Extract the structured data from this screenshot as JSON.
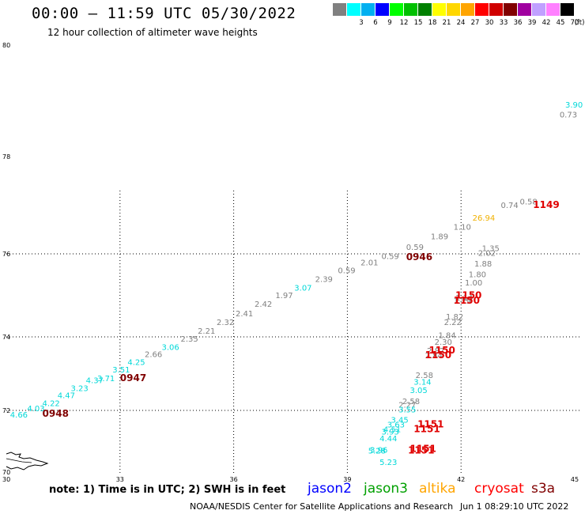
{
  "header": {
    "title": "00:00 – 11:59 UTC 05/30/2022",
    "subtitle": "12 hour collection of altimeter wave heights"
  },
  "legend": {
    "unit": "(ft)",
    "swatches": [
      {
        "color": "#808080",
        "label": ""
      },
      {
        "color": "#00ffff",
        "label": "3"
      },
      {
        "color": "#00b0f0",
        "label": "6"
      },
      {
        "color": "#0000ff",
        "label": "9"
      },
      {
        "color": "#00ff00",
        "label": "12"
      },
      {
        "color": "#00c000",
        "label": "15"
      },
      {
        "color": "#008000",
        "label": "18"
      },
      {
        "color": "#ffff00",
        "label": "21"
      },
      {
        "color": "#ffd700",
        "label": "24"
      },
      {
        "color": "#ffa500",
        "label": "27"
      },
      {
        "color": "#ff0000",
        "label": "30"
      },
      {
        "color": "#d00000",
        "label": "33"
      },
      {
        "color": "#800000",
        "label": "36"
      },
      {
        "color": "#a000a0",
        "label": "39"
      },
      {
        "color": "#c0a0ff",
        "label": "42"
      },
      {
        "color": "#ff80ff",
        "label": "45"
      },
      {
        "color": "#000000",
        "label": "70"
      }
    ]
  },
  "map": {
    "lon_ticks": [
      "30",
      "33",
      "36",
      "39",
      "42",
      "45"
    ],
    "lat_ticks": [
      "70",
      "72",
      "74",
      "76",
      "78",
      "80"
    ],
    "grid_lons": [
      33,
      36,
      39,
      42
    ],
    "grid_lats": [
      72,
      74,
      76
    ]
  },
  "observations": [
    {
      "text": "4.66",
      "lon": 30.1,
      "lat": 71.77,
      "color": "#00d8d8"
    },
    {
      "text": "4.03",
      "lon": 30.55,
      "lat": 71.97,
      "color": "#00d8d8"
    },
    {
      "text": "4.22",
      "lon": 30.95,
      "lat": 72.12,
      "color": "#00d8d8"
    },
    {
      "text": "4.47",
      "lon": 31.35,
      "lat": 72.33,
      "color": "#00d8d8"
    },
    {
      "text": "3.23",
      "lon": 31.7,
      "lat": 72.53,
      "color": "#00d8d8"
    },
    {
      "text": "4.37",
      "lon": 32.1,
      "lat": 72.74,
      "color": "#00d8d8"
    },
    {
      "text": "3.71",
      "lon": 32.4,
      "lat": 72.8,
      "color": "#00d8d8"
    },
    {
      "text": "3.51",
      "lon": 32.8,
      "lat": 73.03,
      "color": "#00d8d8"
    },
    {
      "text": "4.25",
      "lon": 33.2,
      "lat": 73.24,
      "color": "#00d8d8"
    },
    {
      "text": "2.66",
      "lon": 33.65,
      "lat": 73.45,
      "color": "#808080"
    },
    {
      "text": "3.06",
      "lon": 34.1,
      "lat": 73.65,
      "color": "#00d8d8"
    },
    {
      "text": "2.35",
      "lon": 34.6,
      "lat": 73.87,
      "color": "#808080"
    },
    {
      "text": "2.21",
      "lon": 35.05,
      "lat": 74.08,
      "color": "#808080"
    },
    {
      "text": "2.32",
      "lon": 35.55,
      "lat": 74.29,
      "color": "#808080"
    },
    {
      "text": "2.41",
      "lon": 36.05,
      "lat": 74.5,
      "color": "#808080"
    },
    {
      "text": "2.42",
      "lon": 36.55,
      "lat": 74.72,
      "color": "#808080"
    },
    {
      "text": "1.97",
      "lon": 37.1,
      "lat": 74.93,
      "color": "#808080"
    },
    {
      "text": "3.07",
      "lon": 37.6,
      "lat": 75.11,
      "color": "#00d8d8"
    },
    {
      "text": "2.39",
      "lon": 38.15,
      "lat": 75.32,
      "color": "#808080"
    },
    {
      "text": "0.59",
      "lon": 38.75,
      "lat": 75.53,
      "color": "#808080"
    },
    {
      "text": "2.01",
      "lon": 39.35,
      "lat": 75.72,
      "color": "#808080"
    },
    {
      "text": "0.59",
      "lon": 39.9,
      "lat": 75.88,
      "color": "#808080"
    },
    {
      "text": "0.59",
      "lon": 40.55,
      "lat": 76.08,
      "color": "#808080"
    },
    {
      "text": "1.89",
      "lon": 41.2,
      "lat": 76.3,
      "color": "#808080"
    },
    {
      "text": "1.10",
      "lon": 41.8,
      "lat": 76.5,
      "color": "#808080"
    },
    {
      "text": "26.94",
      "lon": 42.3,
      "lat": 76.68,
      "color": "#f0b000"
    },
    {
      "text": "0.74",
      "lon": 43.05,
      "lat": 76.94,
      "color": "#808080"
    },
    {
      "text": "0.58",
      "lon": 43.55,
      "lat": 77.02,
      "color": "#808080"
    },
    {
      "text": "3.90",
      "lon": 44.75,
      "lat": 78.88,
      "color": "#00d8d8"
    },
    {
      "text": "0.73",
      "lon": 44.6,
      "lat": 78.7,
      "color": "#808080"
    },
    {
      "text": "1.35",
      "lon": 42.55,
      "lat": 76.06,
      "color": "#808080"
    },
    {
      "text": "2.02",
      "lon": 42.45,
      "lat": 75.95,
      "color": "#808080"
    },
    {
      "text": "1.88",
      "lon": 42.35,
      "lat": 75.7,
      "color": "#808080"
    },
    {
      "text": "1.80",
      "lon": 42.2,
      "lat": 75.44,
      "color": "#808080"
    },
    {
      "text": "1.00",
      "lon": 42.1,
      "lat": 75.24,
      "color": "#808080"
    },
    {
      "text": "1.14",
      "lon": 41.85,
      "lat": 74.88,
      "color": "#808080"
    },
    {
      "text": "1.29",
      "lon": 41.8,
      "lat": 74.8,
      "color": "#808080"
    },
    {
      "text": "1.82",
      "lon": 41.6,
      "lat": 74.42,
      "color": "#808080"
    },
    {
      "text": "2.22",
      "lon": 41.55,
      "lat": 74.29,
      "color": "#808080"
    },
    {
      "text": "1.84",
      "lon": 41.4,
      "lat": 73.97,
      "color": "#808080"
    },
    {
      "text": "2.30",
      "lon": 41.3,
      "lat": 73.79,
      "color": "#808080"
    },
    {
      "text": "2.87",
      "lon": 41.1,
      "lat": 73.55,
      "color": "#808080"
    },
    {
      "text": "2.84",
      "lon": 41.05,
      "lat": 73.42,
      "color": "#808080"
    },
    {
      "text": "2.58",
      "lon": 40.8,
      "lat": 72.88,
      "color": "#808080"
    },
    {
      "text": "3.14",
      "lon": 40.75,
      "lat": 72.7,
      "color": "#00d8d8"
    },
    {
      "text": "3.05",
      "lon": 40.65,
      "lat": 72.47,
      "color": "#00d8d8"
    },
    {
      "text": "2.58",
      "lon": 40.45,
      "lat": 72.17,
      "color": "#808080"
    },
    {
      "text": "2.27",
      "lon": 40.35,
      "lat": 72.07,
      "color": "#808080"
    },
    {
      "text": "3.55",
      "lon": 40.35,
      "lat": 71.93,
      "color": "#00d8d8"
    },
    {
      "text": "3.45",
      "lon": 40.15,
      "lat": 71.6,
      "color": "#00d8d8"
    },
    {
      "text": "3.63",
      "lon": 40.05,
      "lat": 71.45,
      "color": "#00d8d8"
    },
    {
      "text": "4.51",
      "lon": 39.95,
      "lat": 71.3,
      "color": "#00d8d8"
    },
    {
      "text": "3.93",
      "lon": 39.9,
      "lat": 71.22,
      "color": "#00d8d8"
    },
    {
      "text": "4.44",
      "lon": 39.85,
      "lat": 71.0,
      "color": "#00d8d8"
    },
    {
      "text": "3.96",
      "lon": 39.6,
      "lat": 70.63,
      "color": "#00d8d8"
    },
    {
      "text": "5.28",
      "lon": 39.55,
      "lat": 70.6,
      "color": "#00d8d8"
    },
    {
      "text": "5.23",
      "lon": 39.85,
      "lat": 70.23,
      "color": "#00d8d8"
    }
  ],
  "time_labels": [
    {
      "text": "0948",
      "lon": 30.95,
      "lat": 71.79,
      "color": "#800000"
    },
    {
      "text": "0947",
      "lon": 33.0,
      "lat": 72.8,
      "color": "#800000"
    },
    {
      "text": "0946",
      "lon": 40.55,
      "lat": 75.85,
      "color": "#800000"
    },
    {
      "text": "1149",
      "lon": 43.9,
      "lat": 76.94,
      "color": "#e00000"
    },
    {
      "text": "1150",
      "lon": 41.85,
      "lat": 74.92,
      "color": "#e00000"
    },
    {
      "text": "1150",
      "lon": 41.8,
      "lat": 74.8,
      "color": "#e00000"
    },
    {
      "text": "1150",
      "lon": 41.15,
      "lat": 73.55,
      "color": "#e00000"
    },
    {
      "text": "1150",
      "lon": 41.05,
      "lat": 73.42,
      "color": "#e00000"
    },
    {
      "text": "1151",
      "lon": 40.85,
      "lat": 71.45,
      "color": "#e00000"
    },
    {
      "text": "1151",
      "lon": 40.75,
      "lat": 71.3,
      "color": "#e00000"
    },
    {
      "text": "1151",
      "lon": 40.65,
      "lat": 70.65,
      "color": "#e00000"
    },
    {
      "text": "1151",
      "lon": 40.6,
      "lat": 70.6,
      "color": "#e00000"
    }
  ],
  "footer": {
    "note": "note:  1) Time is in UTC;  2) SWH is in feet",
    "satellites": [
      {
        "name": "jason2",
        "color": "#0000ff"
      },
      {
        "name": "jason3",
        "color": "#00a000"
      },
      {
        "name": "altika",
        "color": "#ffa500"
      },
      {
        "name": "cryosat",
        "color": "#ff0000"
      },
      {
        "name": "s3a",
        "color": "#800000"
      }
    ],
    "credit": "NOAA/NESDIS Center for Satellite Applications and Research",
    "generated": "Jun  1 08:29:10 UTC 2022"
  }
}
